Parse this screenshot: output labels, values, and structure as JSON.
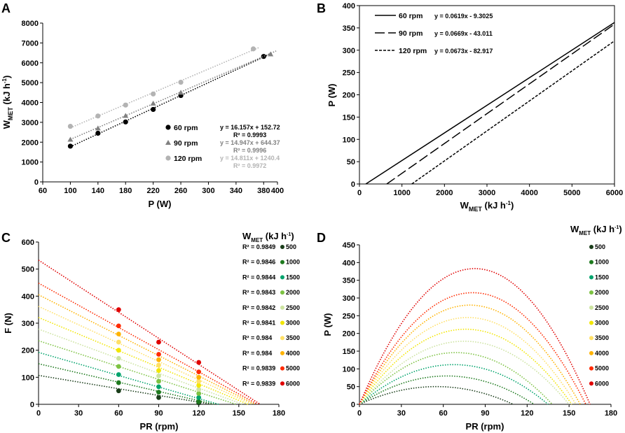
{
  "chart_data": [
    {
      "panel": "A",
      "type": "scatter",
      "xlabel": "P (W)",
      "ylabel": "WMET (kJ h-1)",
      "ylabel_main": "W",
      "ylabel_sub": "MET",
      "ylabel_unit": " (kJ h",
      "ylabel_sup": "-1",
      "ylabel_close": ")",
      "xlim": [
        60,
        400
      ],
      "ylim": [
        0,
        8000
      ],
      "xticks": [
        60,
        100,
        140,
        180,
        220,
        260,
        300,
        340,
        380,
        400
      ],
      "yticks": [
        0,
        1000,
        2000,
        3000,
        4000,
        5000,
        6000,
        7000,
        8000
      ],
      "series": [
        {
          "name": "60 rpm",
          "color": "#000000",
          "marker": "circle",
          "x": [
            100,
            140,
            180,
            220,
            260,
            380
          ],
          "y": [
            1800,
            2450,
            3020,
            3650,
            4350,
            6320
          ],
          "equation": "y = 16.157x + 152.72",
          "r2": "R² = 0.9993",
          "fit": [
            16.157,
            152.72
          ]
        },
        {
          "name": "90 rpm",
          "color": "#808080",
          "marker": "triangle",
          "x": [
            100,
            140,
            180,
            220,
            260,
            390
          ],
          "y": [
            2130,
            2700,
            3330,
            3950,
            4500,
            6430
          ],
          "equation": "y = 14.947x + 644.37",
          "r2": "R² = 0.9996",
          "fit": [
            14.947,
            644.37
          ]
        },
        {
          "name": "120 rpm",
          "color": "#b3b3b3",
          "marker": "circle",
          "x": [
            100,
            140,
            180,
            220,
            260,
            365
          ],
          "y": [
            2800,
            3320,
            3870,
            4430,
            5020,
            6700
          ],
          "equation": "y = 14.811x + 1240.4",
          "r2": "R² = 0.9972",
          "fit": [
            14.811,
            1240.4
          ]
        }
      ]
    },
    {
      "panel": "B",
      "type": "line",
      "xlabel": "WMET (kJ h-1)",
      "xlabel_main": "W",
      "xlabel_sub": "MET",
      "xlabel_unit": " (kJ h",
      "xlabel_sup": "-1",
      "xlabel_close": ")",
      "ylabel": "P (W)",
      "xlim": [
        0,
        6000
      ],
      "ylim": [
        0,
        400
      ],
      "xticks": [
        0,
        1000,
        2000,
        3000,
        4000,
        5000,
        6000
      ],
      "yticks": [
        0,
        50,
        100,
        150,
        200,
        250,
        300,
        350,
        400
      ],
      "series": [
        {
          "name": "60 rpm",
          "equation": "y = 0.0619x - 9.3025",
          "slope": 0.0619,
          "intercept": -9.3025,
          "dash": "solid"
        },
        {
          "name": "90 rpm",
          "equation": "y = 0.0669x - 43.011",
          "slope": 0.0669,
          "intercept": -43.011,
          "dash": "long-dash"
        },
        {
          "name": "120 rpm",
          "equation": "y = 0.0673x - 82.917",
          "slope": 0.0673,
          "intercept": -82.917,
          "dash": "short-dash"
        }
      ]
    },
    {
      "panel": "C",
      "type": "scatter",
      "xlabel": "PR (rpm)",
      "ylabel": "F (N)",
      "xlim": [
        0,
        180
      ],
      "ylim": [
        0,
        600
      ],
      "xticks": [
        0,
        30,
        60,
        90,
        120,
        150,
        180
      ],
      "yticks": [
        0,
        100,
        200,
        300,
        400,
        500,
        600
      ],
      "legend_title_main": "W",
      "legend_title_sub": "MET",
      "legend_title_unit": " (kJ h",
      "legend_title_sup": "-1",
      "legend_title_close": ")",
      "x": [
        60,
        90,
        120
      ],
      "series": [
        {
          "name": "500",
          "color": "#1a3d1a",
          "r2": "R² = 0.9849",
          "y": [
            50,
            25,
            5
          ],
          "intercept": 107,
          "xint": 130
        },
        {
          "name": "1000",
          "color": "#1e7a1e",
          "r2": "R² = 0.9846",
          "y": [
            80,
            45,
            10
          ],
          "intercept": 150,
          "xint": 132
        },
        {
          "name": "1500",
          "color": "#00a36c",
          "r2": "R² = 0.9844",
          "y": [
            110,
            65,
            25
          ],
          "intercept": 192,
          "xint": 135
        },
        {
          "name": "2000",
          "color": "#7dc242",
          "r2": "R² = 0.9843",
          "y": [
            140,
            85,
            40
          ],
          "intercept": 235,
          "xint": 148
        },
        {
          "name": "2500",
          "color": "#cce3a0",
          "r2": "R² = 0.9842",
          "y": [
            170,
            105,
            55
          ],
          "intercept": 278,
          "xint": 153
        },
        {
          "name": "3000",
          "color": "#f2e600",
          "r2": "R² = 0.9841",
          "y": [
            200,
            125,
            70
          ],
          "intercept": 321,
          "xint": 157
        },
        {
          "name": "3500",
          "color": "#ffe066",
          "r2": "R² = 0.984",
          "y": [
            230,
            145,
            85
          ],
          "intercept": 362,
          "xint": 160
        },
        {
          "name": "4000",
          "color": "#ffb300",
          "r2": "R² = 0.984",
          "y": [
            260,
            165,
            100
          ],
          "intercept": 405,
          "xint": 162
        },
        {
          "name": "5000",
          "color": "#ff2a00",
          "r2": "R² = 0.9839",
          "y": [
            290,
            185,
            120
          ],
          "intercept": 448,
          "xint": 164
        },
        {
          "name": "6000",
          "color": "#e00000",
          "r2": "R² = 0.9839",
          "y": [
            350,
            230,
            155
          ],
          "intercept": 533,
          "xint": 166
        }
      ]
    },
    {
      "panel": "D",
      "type": "line",
      "xlabel": "PR (rpm)",
      "ylabel": "P (W)",
      "xlim": [
        0,
        180
      ],
      "ylim": [
        0,
        450
      ],
      "xticks": [
        0,
        30,
        60,
        90,
        120,
        150,
        180
      ],
      "yticks": [
        0,
        50,
        100,
        150,
        200,
        250,
        300,
        350,
        400,
        450
      ],
      "legend_title_main": "W",
      "legend_title_sub": "MET",
      "legend_title_unit": " (kJ h",
      "legend_title_sup": "-1",
      "legend_title_close": ")",
      "series": [
        {
          "name": "500",
          "color": "#1a3d1a",
          "peak": 50,
          "xend": 110
        },
        {
          "name": "1000",
          "color": "#1e7a1e",
          "peak": 80,
          "xend": 125
        },
        {
          "name": "1500",
          "color": "#00a36c",
          "peak": 112,
          "xend": 135
        },
        {
          "name": "2000",
          "color": "#7dc242",
          "peak": 146,
          "xend": 138
        },
        {
          "name": "2500",
          "color": "#cce3a0",
          "peak": 178,
          "xend": 150
        },
        {
          "name": "3000",
          "color": "#f2e600",
          "peak": 212,
          "xend": 152
        },
        {
          "name": "3500",
          "color": "#ffe066",
          "peak": 245,
          "xend": 155
        },
        {
          "name": "4000",
          "color": "#ffb300",
          "peak": 280,
          "xend": 158
        },
        {
          "name": "5000",
          "color": "#ff2a00",
          "peak": 315,
          "xend": 162
        },
        {
          "name": "6000",
          "color": "#e00000",
          "peak": 383,
          "xend": 165
        }
      ]
    }
  ]
}
